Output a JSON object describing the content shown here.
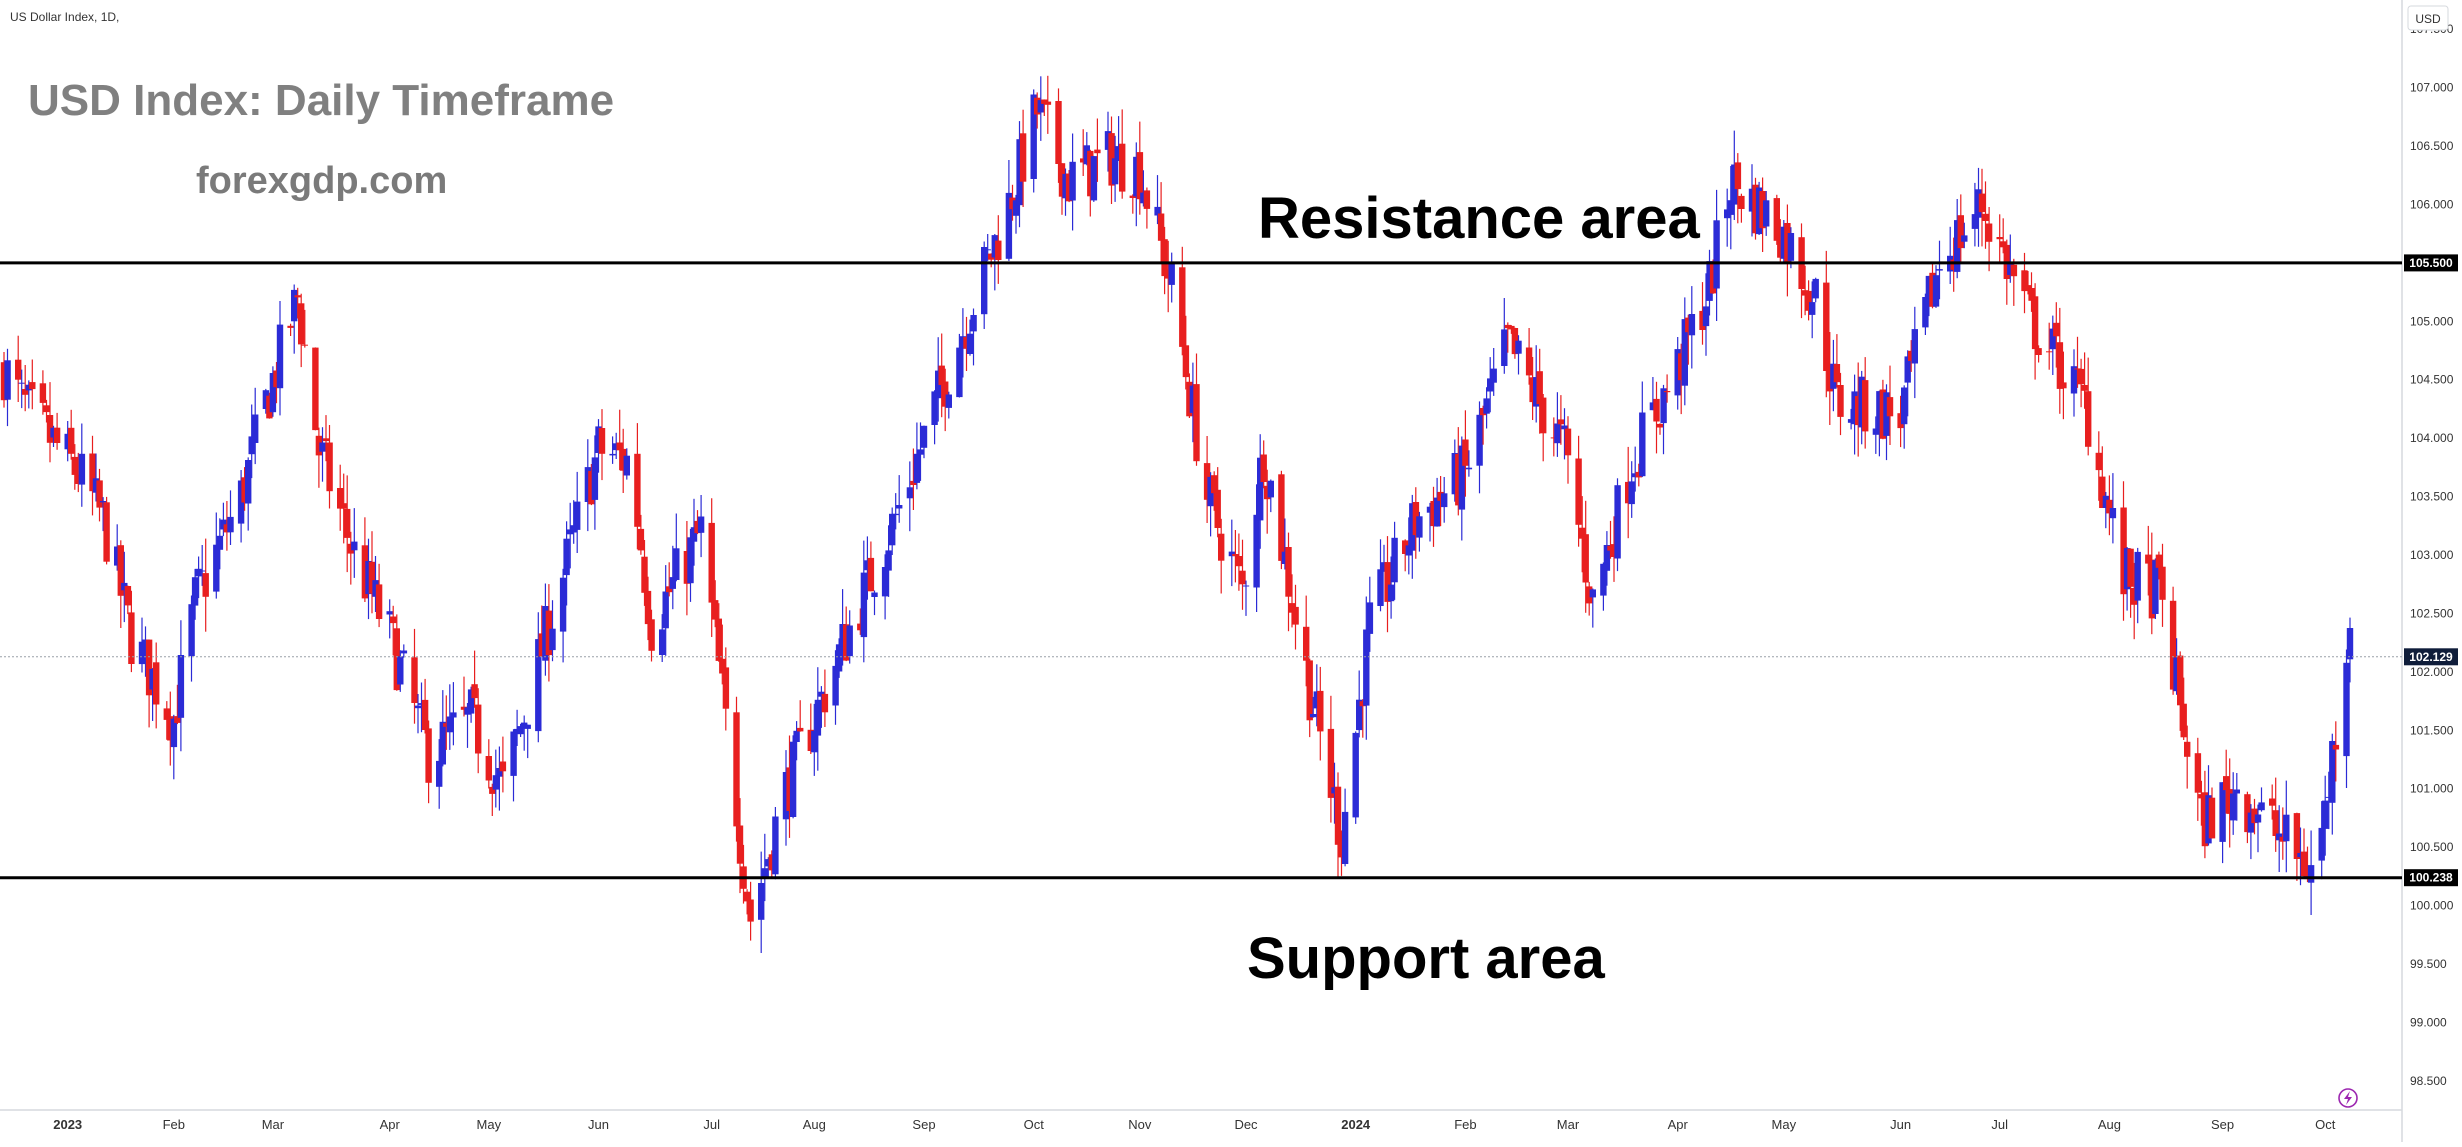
{
  "chart_data": {
    "type": "candlestick",
    "symbol_label": "US Dollar Index, 1D,",
    "currency_button": "USD",
    "title": "USD Index: Daily Timeframe",
    "subtitle": "forexgdp.com",
    "annotations": {
      "resistance": "Resistance area",
      "support": "Support area"
    },
    "ylim": [
      98.25,
      107.75
    ],
    "y_ticks": [
      "107.500",
      "107.000",
      "106.500",
      "106.000",
      "105.500",
      "105.000",
      "104.500",
      "104.000",
      "103.500",
      "103.000",
      "102.500",
      "102.000",
      "101.500",
      "101.000",
      "100.500",
      "100.000",
      "99.500",
      "99.000",
      "98.500"
    ],
    "x_labels": [
      "2023",
      "Feb",
      "Mar",
      "Apr",
      "May",
      "Jun",
      "Jul",
      "Aug",
      "Sep",
      "Oct",
      "Nov",
      "Dec",
      "2024",
      "Feb",
      "Mar",
      "Apr",
      "May",
      "Jun",
      "Jul",
      "Aug",
      "Sep",
      "Oct"
    ],
    "x_label_dates": [
      "2023-01-02",
      "2023-02-01",
      "2023-03-01",
      "2023-04-03",
      "2023-05-01",
      "2023-06-01",
      "2023-07-03",
      "2023-08-01",
      "2023-09-01",
      "2023-10-02",
      "2023-11-01",
      "2023-12-01",
      "2024-01-01",
      "2024-02-01",
      "2024-03-01",
      "2024-04-01",
      "2024-05-01",
      "2024-06-03",
      "2024-07-01",
      "2024-08-01",
      "2024-09-02",
      "2024-10-01"
    ],
    "date_range": [
      "2022-12-15",
      "2024-10-08"
    ],
    "levels": {
      "resistance": {
        "value": 105.5,
        "label": "105.500"
      },
      "support": {
        "value": 100.238,
        "label": "100.238"
      },
      "last_price": {
        "value": 102.129,
        "label": "102.129"
      }
    },
    "colors": {
      "up": "#2b2bd6",
      "down": "#e81f1f",
      "level_line": "#000000",
      "last_price_line": "#9aa0a8",
      "title": "#808080",
      "subtitle": "#7a7a7a",
      "annotation": "#000000"
    },
    "path_anchors": [
      [
        "2022-12-15",
        104.6
      ],
      [
        "2022-12-20",
        104.3
      ],
      [
        "2022-12-28",
        104.0
      ],
      [
        "2023-01-05",
        103.7
      ],
      [
        "2023-01-12",
        103.3
      ],
      [
        "2023-01-20",
        102.3
      ],
      [
        "2023-02-01",
        101.6
      ],
      [
        "2023-02-07",
        102.6
      ],
      [
        "2023-02-20",
        103.5
      ],
      [
        "2023-02-28",
        104.4
      ],
      [
        "2023-03-08",
        105.2
      ],
      [
        "2023-03-14",
        103.9
      ],
      [
        "2023-03-24",
        103.0
      ],
      [
        "2023-04-03",
        102.3
      ],
      [
        "2023-04-14",
        101.3
      ],
      [
        "2023-04-26",
        101.6
      ],
      [
        "2023-05-05",
        101.0
      ],
      [
        "2023-05-18",
        102.4
      ],
      [
        "2023-06-01",
        103.9
      ],
      [
        "2023-06-10",
        103.8
      ],
      [
        "2023-06-16",
        102.4
      ],
      [
        "2023-06-30",
        103.2
      ],
      [
        "2023-07-14",
        99.9
      ],
      [
        "2023-07-24",
        101.0
      ],
      [
        "2023-08-10",
        102.3
      ],
      [
        "2023-08-25",
        103.4
      ],
      [
        "2023-09-08",
        104.6
      ],
      [
        "2023-09-25",
        106.0
      ],
      [
        "2023-10-03",
        106.8
      ],
      [
        "2023-10-12",
        106.2
      ],
      [
        "2023-10-24",
        106.4
      ],
      [
        "2023-11-01",
        106.3
      ],
      [
        "2023-11-10",
        105.3
      ],
      [
        "2023-11-20",
        103.5
      ],
      [
        "2023-11-30",
        102.7
      ],
      [
        "2023-12-06",
        103.9
      ],
      [
        "2023-12-18",
        102.0
      ],
      [
        "2023-12-28",
        100.6
      ],
      [
        "2024-01-05",
        102.4
      ],
      [
        "2024-01-18",
        103.3
      ],
      [
        "2024-02-01",
        103.7
      ],
      [
        "2024-02-13",
        104.8
      ],
      [
        "2024-02-29",
        103.9
      ],
      [
        "2024-03-08",
        102.6
      ],
      [
        "2024-03-19",
        103.8
      ],
      [
        "2024-04-01",
        104.6
      ],
      [
        "2024-04-10",
        105.3
      ],
      [
        "2024-04-16",
        106.2
      ],
      [
        "2024-04-30",
        105.8
      ],
      [
        "2024-05-10",
        105.2
      ],
      [
        "2024-05-16",
        104.3
      ],
      [
        "2024-06-03",
        104.2
      ],
      [
        "2024-06-14",
        105.5
      ],
      [
        "2024-06-26",
        106.0
      ],
      [
        "2024-07-10",
        105.0
      ],
      [
        "2024-07-25",
        104.3
      ],
      [
        "2024-08-05",
        102.8
      ],
      [
        "2024-08-15",
        102.7
      ],
      [
        "2024-08-27",
        100.7
      ],
      [
        "2024-09-06",
        101.0
      ],
      [
        "2024-09-18",
        100.6
      ],
      [
        "2024-09-27",
        100.3
      ],
      [
        "2024-10-01",
        100.8
      ],
      [
        "2024-10-08",
        102.5
      ]
    ]
  }
}
